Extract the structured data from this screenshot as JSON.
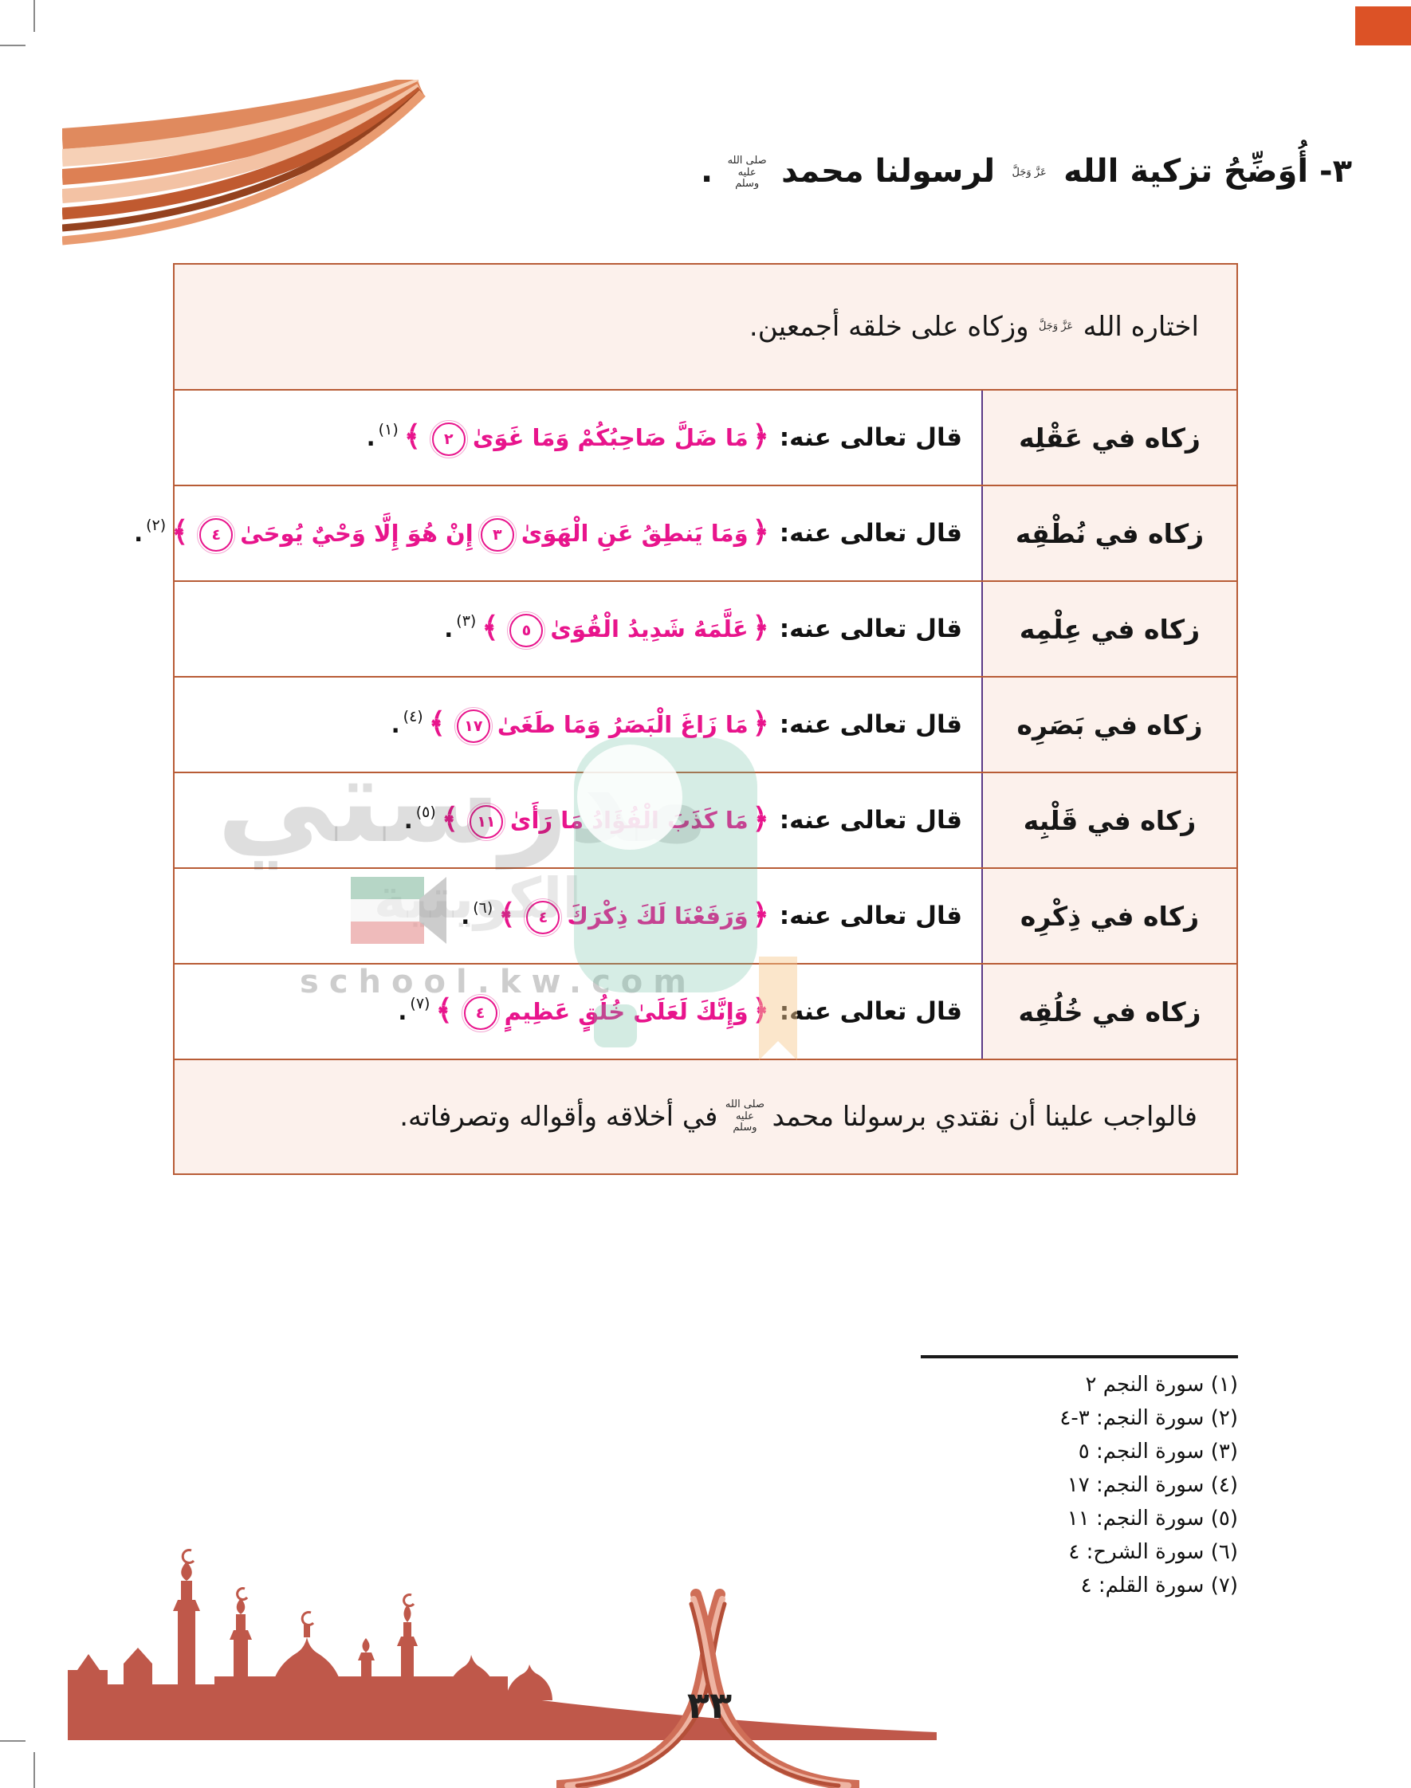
{
  "page": {
    "number_arabic": "٣٣"
  },
  "title": {
    "lead": "٣- أُوَضِّحُ تزكية الله",
    "honorific_azza": "عَزَّ وَجَلَّ",
    "middle": "لرسولنا محمد",
    "honorific_saw": "صلى الله عليه وسلم",
    "period": "."
  },
  "table": {
    "bracket_open": "﴿",
    "bracket_close": "﴾",
    "period": ".",
    "header": {
      "lead": "اختاره الله",
      "honorific": "عَزَّ وَجَلَّ",
      "rest": "وزكاه على خلقه أجمعين."
    },
    "rows": [
      {
        "label": "زكاه في عَقْلِه",
        "intro": "قال تعالى عنه:",
        "verse_parts": [
          {
            "text": "مَا ضَلَّ صَاحِبُكُمْ وَمَا غَوَىٰ",
            "ayah": "٢"
          }
        ],
        "ref": "(١)"
      },
      {
        "label": "زكاه في نُطْقِه",
        "intro": "قال تعالى عنه:",
        "verse_parts": [
          {
            "text": "وَمَا يَنطِقُ عَنِ الْهَوَىٰ",
            "ayah": "٣"
          },
          {
            "text": "إِنْ هُوَ إِلَّا وَحْيٌ يُوحَىٰ",
            "ayah": "٤"
          }
        ],
        "ref": "(٢)"
      },
      {
        "label": "زكاه في عِلْمِه",
        "intro": "قال تعالى عنه:",
        "verse_parts": [
          {
            "text": "عَلَّمَهُ شَدِيدُ الْقُوَىٰ",
            "ayah": "٥"
          }
        ],
        "ref": "(٣)"
      },
      {
        "label": "زكاه في بَصَرِه",
        "intro": "قال تعالى عنه:",
        "verse_parts": [
          {
            "text": "مَا زَاغَ الْبَصَرُ وَمَا طَغَىٰ",
            "ayah": "١٧"
          }
        ],
        "ref": "(٤)"
      },
      {
        "label": "زكاه في قَلْبِه",
        "intro": "قال تعالى عنه:",
        "verse_parts": [
          {
            "text": "مَا كَذَبَ الْفُؤَادُ مَا رَأَىٰ",
            "ayah": "١١"
          }
        ],
        "ref": "(٥)"
      },
      {
        "label": "زكاه في ذِكْرِه",
        "intro": "قال تعالى عنه:",
        "verse_parts": [
          {
            "text": "وَرَفَعْنَا لَكَ ذِكْرَكَ",
            "ayah": "٤"
          }
        ],
        "ref": "(٦)"
      },
      {
        "label": "زكاه في خُلُقِه",
        "intro": "قال تعالى عنه:",
        "verse_parts": [
          {
            "text": "وَإِنَّكَ لَعَلَىٰ خُلُقٍ عَظِيمٍ",
            "ayah": "٤"
          }
        ],
        "ref": "(٧)"
      }
    ],
    "footer": {
      "lead": "فالواجب علينا أن نقتدي برسولنا محمد",
      "honorific": "صلى الله عليه وسلم",
      "rest": "في أخلاقه وأقواله وتصرفاته."
    }
  },
  "footnotes": [
    "(١) سورة النجم ٢",
    "(٢) سورة النجم: ٣-٤",
    "(٣) سورة النجم: ٥",
    "(٤) سورة النجم: ١٧",
    "(٥) سورة النجم: ١١",
    "(٦) سورة الشرح: ٤",
    "(٧) سورة القلم: ٤"
  ],
  "watermark": {
    "brand": "مدرستي",
    "subtitle": "الكويتية",
    "site": "school.kw.com"
  },
  "colors": {
    "table_border": "#b85c36",
    "cell_fill": "#fcf1ec",
    "verse_pink": "#e8148c",
    "separator_purple": "#5b3a86",
    "decor_terracotta": "#bf584a",
    "corner_mark_orange": "#dc5226"
  }
}
